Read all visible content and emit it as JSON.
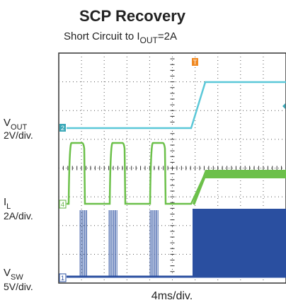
{
  "title": "SCP Recovery",
  "subtitle": {
    "text": "Short Circuit to I",
    "sub": "OUT",
    "suffix": "=2A"
  },
  "channels": [
    {
      "name": "V",
      "sub": "OUT",
      "scale": "2V/div.",
      "marker": "2"
    },
    {
      "name": "I",
      "sub": "L",
      "scale": "2A/div.",
      "marker": "4"
    },
    {
      "name": "V",
      "sub": "SW",
      "scale": "5V/div.",
      "marker": "1"
    }
  ],
  "trigger": "T",
  "x_label": "4ms/div."
}
